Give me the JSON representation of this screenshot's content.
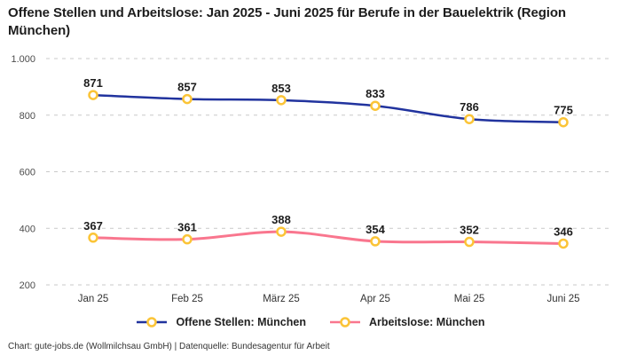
{
  "title": "Offene Stellen und Arbeitslose: Jan 2025 - Juni 2025 für Berufe in der Bauelektrik (Region München)",
  "footer": "Chart: gute-jobs.de (Wollmilchsau GmbH) | Datenquelle: Bundesagentur für Arbeit",
  "colors": {
    "offene_stellen_line": "#21339e",
    "arbeitslose_line": "#f9768e",
    "marker_stroke": "#fbc437",
    "marker_fill": "#ffffff",
    "gridline": "#c9c9c9",
    "data_label": "#1d1d1d",
    "axis_tick": "#4c4c4c",
    "background": "#ffffff"
  },
  "legend": {
    "items": [
      {
        "label": "Offene Stellen: München",
        "color": "#21339e"
      },
      {
        "label": "Arbeitslose: München",
        "color": "#f9768e"
      }
    ]
  },
  "chart_data": {
    "type": "line",
    "title": "Offene Stellen und Arbeitslose: Jan 2025 - Juni 2025 für Berufe in der Bauelektrik (Region München)",
    "categories": [
      "Jan 25",
      "Feb 25",
      "März 25",
      "Apr 25",
      "Mai 25",
      "Juni 25"
    ],
    "series": [
      {
        "name": "Offene Stellen: München",
        "values": [
          871,
          857,
          853,
          833,
          786,
          775
        ],
        "color": "#21339e",
        "stroke_width": 2.5
      },
      {
        "name": "Arbeitslose: München",
        "values": [
          367,
          361,
          388,
          354,
          352,
          346
        ],
        "color": "#f9768e",
        "stroke_width": 3
      }
    ],
    "xlabel": "",
    "ylabel": "",
    "ylim": [
      200,
      1000
    ],
    "yticks": {
      "values": [
        200,
        400,
        600,
        800,
        1000
      ],
      "labels": [
        "200",
        "400",
        "600",
        "800",
        "1.000"
      ]
    },
    "grid": "horizontal-dashed",
    "legend_position": "bottom",
    "markers": "white-circle-yellow-ring",
    "data_labels": true
  }
}
